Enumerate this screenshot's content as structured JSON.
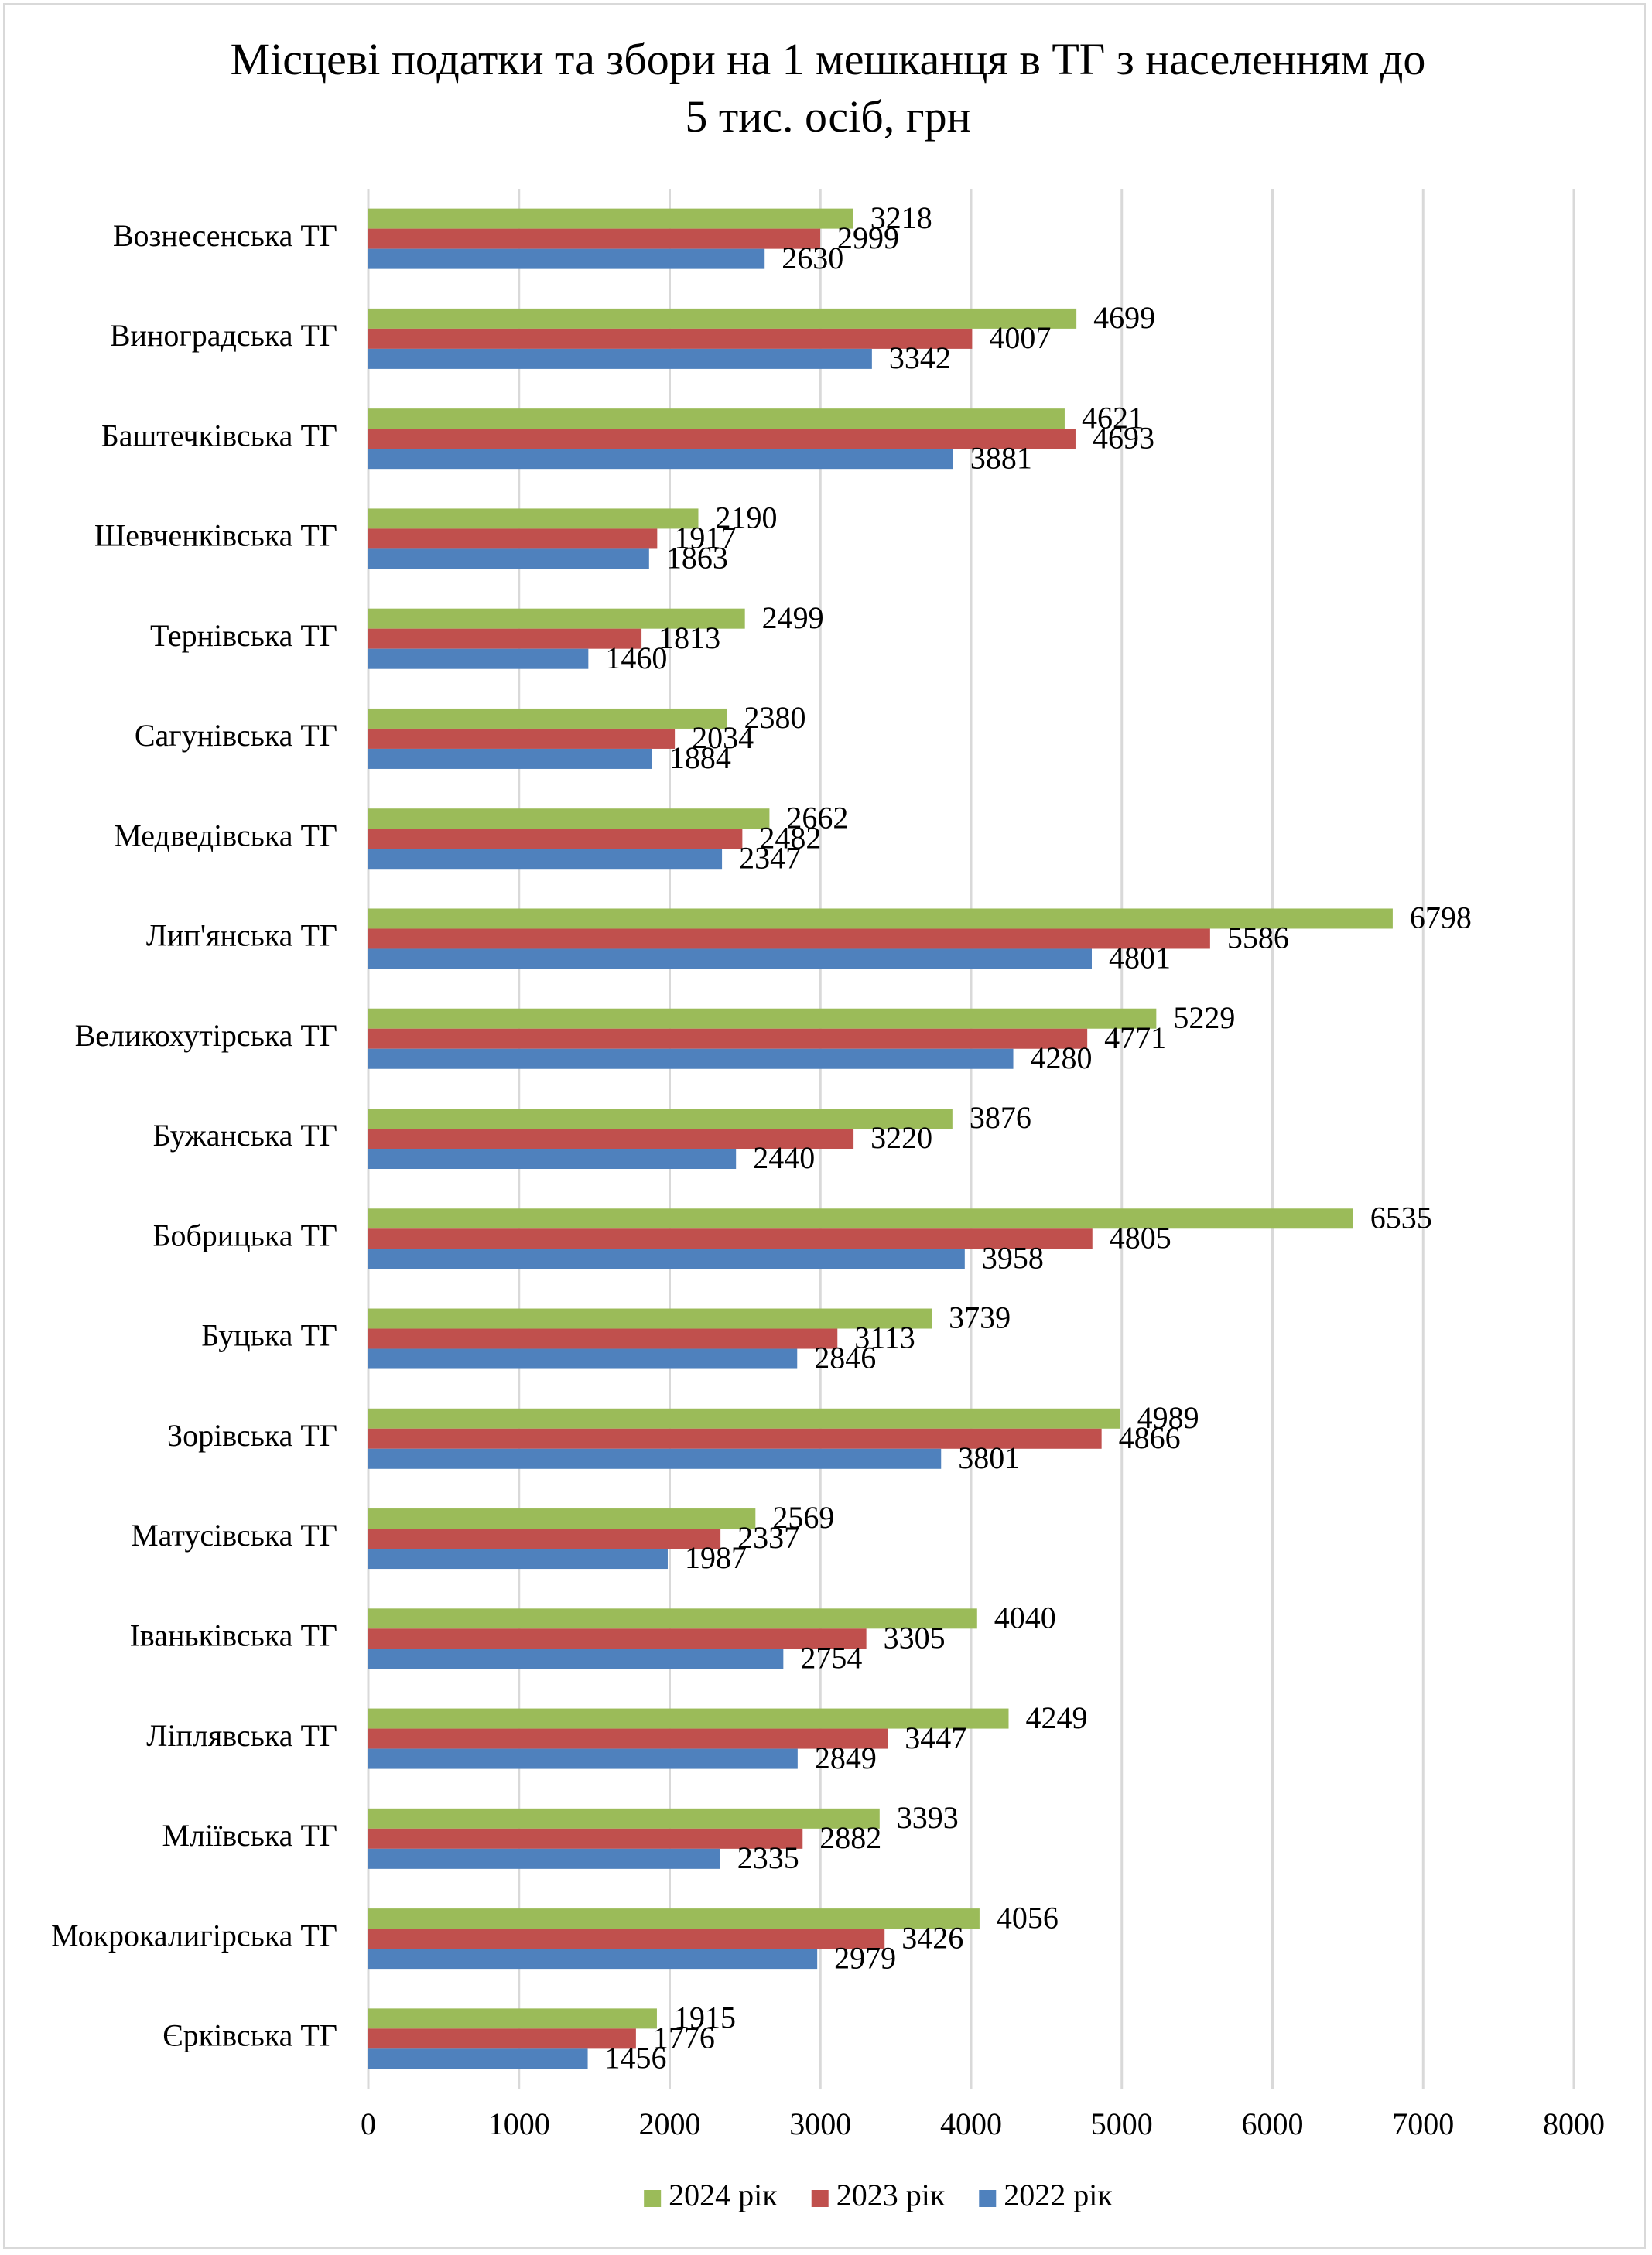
{
  "chart_data": {
    "type": "hbar",
    "title": "Місцеві податки та збори на 1 мешканця в ТГ з населенням до 5 тис. осіб, грн",
    "categories": [
      "Вознесенська ТГ",
      "Виноградська ТГ",
      "Баштечківська ТГ",
      "Шевченківська ТГ",
      "Тернівська ТГ",
      "Сагунівська ТГ",
      "Медведівська ТГ",
      "Лип'янська ТГ",
      "Великохутірська ТГ",
      "Бужанська ТГ",
      "Бобрицька ТГ",
      "Буцька ТГ",
      "Зорівська ТГ",
      "Матусівська ТГ",
      "Іваньківська ТГ",
      "Ліплявська ТГ",
      "Мліївська ТГ",
      "Мокрокалигірська ТГ",
      "Єрківська ТГ"
    ],
    "series": [
      {
        "name": "2024 рік",
        "color": "#9bbb59",
        "values": [
          3218,
          4699,
          4621,
          2190,
          2499,
          2380,
          2662,
          6798,
          5229,
          3876,
          6535,
          3739,
          4989,
          2569,
          4040,
          4249,
          3393,
          4056,
          1915
        ]
      },
      {
        "name": "2023 рік",
        "color": "#c0504d",
        "values": [
          2999,
          4007,
          4693,
          1917,
          1813,
          2034,
          2482,
          5586,
          4771,
          3220,
          4805,
          3113,
          4866,
          2337,
          3305,
          3447,
          2882,
          3426,
          1776
        ]
      },
      {
        "name": "2022 рік",
        "color": "#4f81bd",
        "values": [
          2630,
          3342,
          3881,
          1863,
          1460,
          1884,
          2347,
          4801,
          4280,
          2440,
          3958,
          2846,
          3801,
          1987,
          2754,
          2849,
          2335,
          2979,
          1456
        ]
      }
    ],
    "xlim": [
      0,
      8000
    ],
    "xticks": [
      0,
      1000,
      2000,
      3000,
      4000,
      5000,
      6000,
      7000,
      8000
    ],
    "grid": true,
    "legend": "bottom"
  }
}
